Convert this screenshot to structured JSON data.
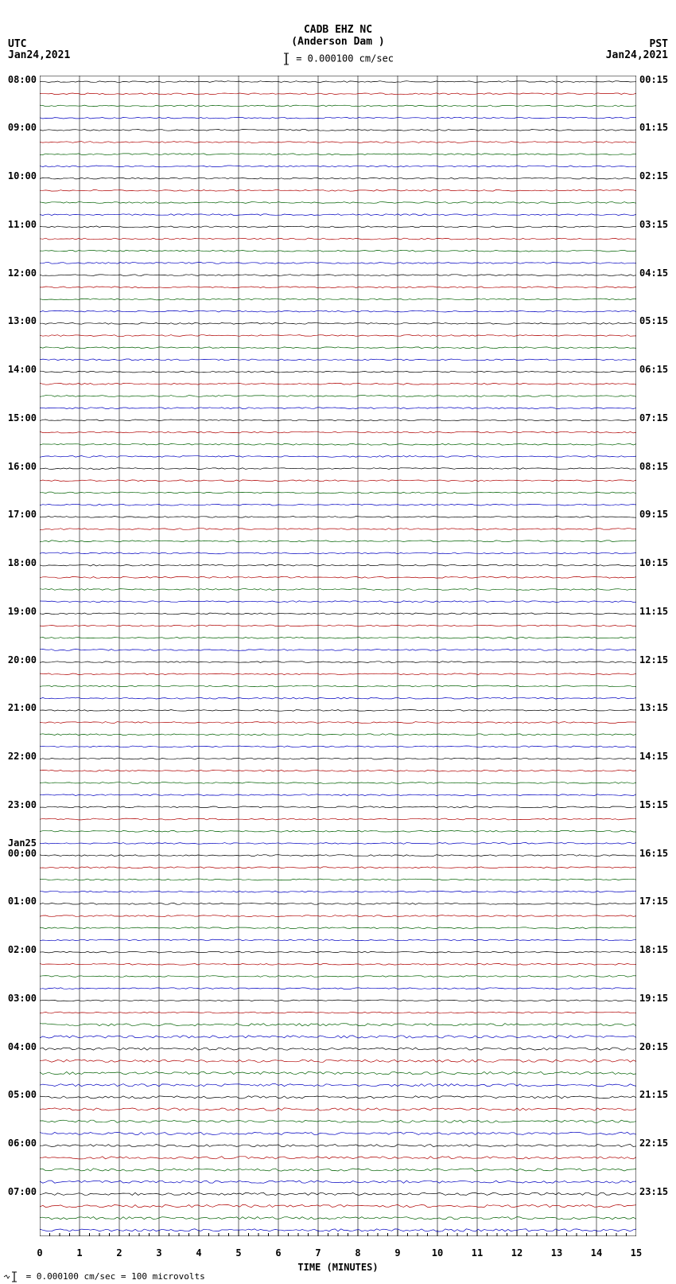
{
  "title": {
    "line1": "CADB EHZ NC",
    "line2": "(Anderson Dam )",
    "scale": "= 0.000100 cm/sec",
    "scaleBarHeight": 12
  },
  "tz": {
    "left": "UTC",
    "right": "PST"
  },
  "dates": {
    "left": "Jan24,2021",
    "right": "Jan24,2021"
  },
  "footer": "= 0.000100 cm/sec =    100 microvolts",
  "xaxis": {
    "label": "TIME (MINUTES)",
    "min": 0,
    "max": 15,
    "ticks": [
      0,
      1,
      2,
      3,
      4,
      5,
      6,
      7,
      8,
      9,
      10,
      11,
      12,
      13,
      14,
      15
    ]
  },
  "plot": {
    "background": "#ffffff",
    "gridColor": "#000000",
    "nTraces": 96,
    "noiseAmplitude": 0.9,
    "traceSamples": 200,
    "lateAmplify": 78,
    "lateAmplifyFactor": 1.8
  },
  "traceColorCycle": [
    "#000000",
    "#b00000",
    "#006000",
    "#0000c0"
  ],
  "leftLabels": [
    {
      "idx": 0,
      "text": "08:00"
    },
    {
      "idx": 4,
      "text": "09:00"
    },
    {
      "idx": 8,
      "text": "10:00"
    },
    {
      "idx": 12,
      "text": "11:00"
    },
    {
      "idx": 16,
      "text": "12:00"
    },
    {
      "idx": 20,
      "text": "13:00"
    },
    {
      "idx": 24,
      "text": "14:00"
    },
    {
      "idx": 28,
      "text": "15:00"
    },
    {
      "idx": 32,
      "text": "16:00"
    },
    {
      "idx": 36,
      "text": "17:00"
    },
    {
      "idx": 40,
      "text": "18:00"
    },
    {
      "idx": 44,
      "text": "19:00"
    },
    {
      "idx": 48,
      "text": "20:00"
    },
    {
      "idx": 52,
      "text": "21:00"
    },
    {
      "idx": 56,
      "text": "22:00"
    },
    {
      "idx": 60,
      "text": "23:00"
    },
    {
      "idx": 64,
      "text": "00:00",
      "date": "Jan25"
    },
    {
      "idx": 68,
      "text": "01:00"
    },
    {
      "idx": 72,
      "text": "02:00"
    },
    {
      "idx": 76,
      "text": "03:00"
    },
    {
      "idx": 80,
      "text": "04:00"
    },
    {
      "idx": 84,
      "text": "05:00"
    },
    {
      "idx": 88,
      "text": "06:00"
    },
    {
      "idx": 92,
      "text": "07:00"
    }
  ],
  "rightLabels": [
    {
      "idx": 0,
      "text": "00:15"
    },
    {
      "idx": 4,
      "text": "01:15"
    },
    {
      "idx": 8,
      "text": "02:15"
    },
    {
      "idx": 12,
      "text": "03:15"
    },
    {
      "idx": 16,
      "text": "04:15"
    },
    {
      "idx": 20,
      "text": "05:15"
    },
    {
      "idx": 24,
      "text": "06:15"
    },
    {
      "idx": 28,
      "text": "07:15"
    },
    {
      "idx": 32,
      "text": "08:15"
    },
    {
      "idx": 36,
      "text": "09:15"
    },
    {
      "idx": 40,
      "text": "10:15"
    },
    {
      "idx": 44,
      "text": "11:15"
    },
    {
      "idx": 48,
      "text": "12:15"
    },
    {
      "idx": 52,
      "text": "13:15"
    },
    {
      "idx": 56,
      "text": "14:15"
    },
    {
      "idx": 60,
      "text": "15:15"
    },
    {
      "idx": 64,
      "text": "16:15"
    },
    {
      "idx": 68,
      "text": "17:15"
    },
    {
      "idx": 72,
      "text": "18:15"
    },
    {
      "idx": 76,
      "text": "19:15"
    },
    {
      "idx": 80,
      "text": "20:15"
    },
    {
      "idx": 84,
      "text": "21:15"
    },
    {
      "idx": 88,
      "text": "22:15"
    },
    {
      "idx": 92,
      "text": "23:15"
    }
  ]
}
